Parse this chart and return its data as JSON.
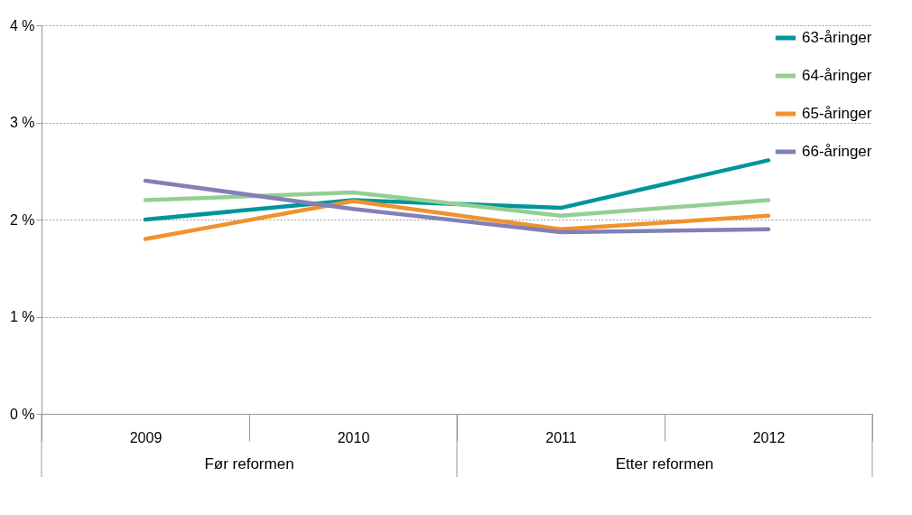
{
  "chart_data": {
    "type": "line",
    "categories": [
      "2009",
      "2010",
      "2011",
      "2012"
    ],
    "series": [
      {
        "name": "63-åringer",
        "color": "#00959a",
        "values": [
          2.0,
          2.2,
          2.12,
          2.61
        ]
      },
      {
        "name": "64-åringer",
        "color": "#93cf93",
        "values": [
          2.2,
          2.28,
          2.04,
          2.2
        ]
      },
      {
        "name": "65-åringer",
        "color": "#f0922e",
        "values": [
          1.8,
          2.19,
          1.9,
          2.04
        ]
      },
      {
        "name": "66-åringer",
        "color": "#8280b6",
        "values": [
          2.4,
          2.11,
          1.87,
          1.9
        ]
      }
    ],
    "ylim": [
      0,
      4
    ],
    "yticks": [
      {
        "value": 0,
        "label": "0 %"
      },
      {
        "value": 1,
        "label": "1 %"
      },
      {
        "value": 2,
        "label": "2 %"
      },
      {
        "value": 3,
        "label": "3 %"
      },
      {
        "value": 4,
        "label": "4 %"
      }
    ],
    "grid": "y",
    "legend": "top right",
    "marker": "none",
    "line_style": "solid",
    "annotations": [
      "Før reformen",
      "Etter reformen"
    ]
  }
}
